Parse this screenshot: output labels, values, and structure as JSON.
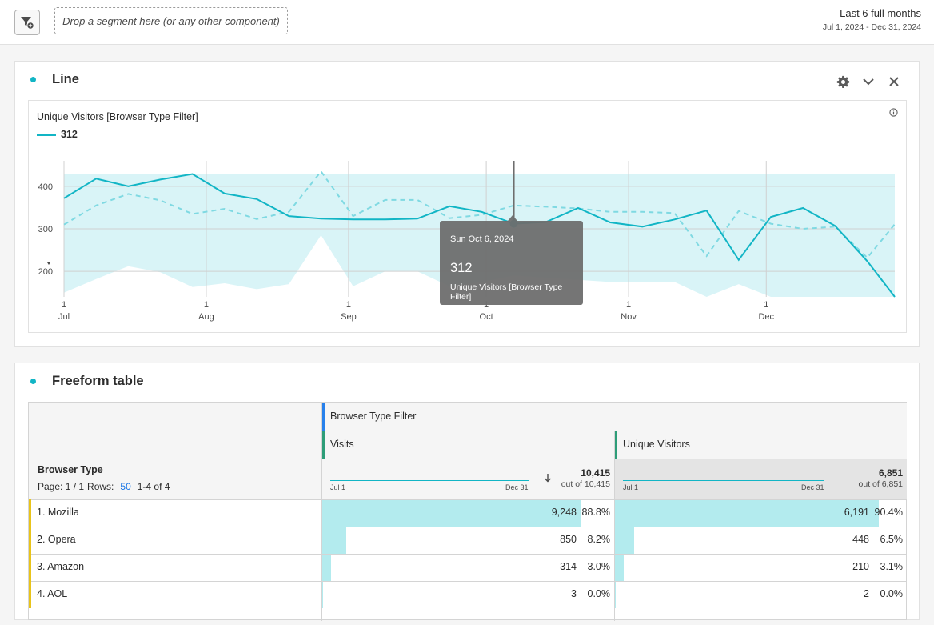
{
  "topbar": {
    "dropzone_text": "Drop a segment here (or any other component)",
    "date_title": "Last 6 full months",
    "date_range": "Jul 1, 2024 - Dec 31, 2024"
  },
  "line_panel": {
    "title": "Line",
    "chart_title": "Unique Visitors [Browser Type Filter]",
    "legend_value": "312",
    "tooltip": {
      "date": "Sun Oct 6, 2024",
      "value": "312",
      "label": "Unique Visitors [Browser Type Filter]"
    }
  },
  "chart_data": {
    "type": "line",
    "title": "Unique Visitors [Browser Type Filter]",
    "y_ticks": [
      "400",
      "300",
      "200"
    ],
    "ylim": [
      140,
      460
    ],
    "x_ticks": [
      {
        "day": "1",
        "month": "Jul",
        "t": 0
      },
      {
        "day": "1",
        "month": "Aug",
        "t": 31
      },
      {
        "day": "1",
        "month": "Sep",
        "t": 62
      },
      {
        "day": "1",
        "month": "Oct",
        "t": 92
      },
      {
        "day": "1",
        "month": "Nov",
        "t": 123
      },
      {
        "day": "1",
        "month": "Dec",
        "t": 153
      }
    ],
    "x_range": [
      0,
      181
    ],
    "series": [
      {
        "name": "312",
        "t": [
          0,
          7,
          14,
          21,
          28,
          35,
          42,
          49,
          56,
          63,
          70,
          77,
          84,
          91,
          98,
          105,
          112,
          119,
          126,
          133,
          140,
          147,
          154,
          161,
          168,
          175,
          181
        ],
        "values": [
          372,
          418,
          400,
          416,
          429,
          383,
          370,
          330,
          324,
          322,
          322,
          324,
          353,
          340,
          312,
          316,
          349,
          315,
          305,
          322,
          343,
          227,
          328,
          349,
          307,
          224,
          113
        ]
      },
      {
        "t": [
          0,
          7,
          14,
          21,
          28,
          35,
          42,
          49,
          56,
          63,
          70,
          77,
          84,
          91,
          98,
          105,
          112,
          119,
          126,
          133,
          140,
          147,
          154,
          161,
          168,
          175,
          181
        ],
        "values": [
          310,
          355,
          382,
          367,
          335,
          347,
          323,
          340,
          435,
          330,
          368,
          368,
          325,
          333,
          355,
          352,
          348,
          340,
          340,
          337,
          236,
          342,
          312,
          300,
          305,
          232,
          311
        ]
      }
    ],
    "band": {
      "t": [
        0,
        7,
        14,
        21,
        28,
        35,
        42,
        49,
        56,
        63,
        70,
        77,
        84,
        91,
        98,
        105,
        112,
        119,
        126,
        133,
        140,
        147,
        154,
        161,
        168,
        175,
        181
      ],
      "upper": [
        428,
        428,
        428,
        428,
        428,
        428,
        428,
        428,
        428,
        428,
        428,
        428,
        428,
        428,
        428,
        428,
        428,
        428,
        428,
        428,
        428,
        428,
        428,
        428,
        428,
        428,
        428
      ],
      "lower": [
        150,
        182,
        212,
        198,
        163,
        172,
        158,
        170,
        285,
        165,
        200,
        200,
        165,
        175,
        190,
        185,
        180,
        175,
        175,
        175,
        105,
        170,
        140,
        130,
        140,
        105,
        105
      ]
    },
    "highlight": {
      "t": 98,
      "value": 312
    }
  },
  "table_panel": {
    "title": "Freeform table",
    "segment_header": "Browser Type Filter",
    "dimension": "Browser Type",
    "page_label": "Page: 1 / 1",
    "rows_label": "Rows:",
    "rows_value": "50",
    "range_label": "1-4 of 4",
    "columns": [
      {
        "name": "Visits",
        "spark_start": "Jul 1",
        "spark_end": "Dec 31",
        "total": "10,415",
        "total_sub": "out of 10,415"
      },
      {
        "name": "Unique Visitors",
        "spark_start": "Jul 1",
        "spark_end": "Dec 31",
        "total": "6,851",
        "total_sub": "out of 6,851"
      }
    ],
    "rows": [
      {
        "name": "1.  Mozilla",
        "visits": "9,248",
        "visits_pct": "88.8%",
        "visits_frac": 0.888,
        "uv": "6,191",
        "uv_pct": "90.4%",
        "uv_frac": 0.904
      },
      {
        "name": "2.  Opera",
        "visits": "850",
        "visits_pct": "8.2%",
        "visits_frac": 0.082,
        "uv": "448",
        "uv_pct": "6.5%",
        "uv_frac": 0.065
      },
      {
        "name": "3.  Amazon",
        "visits": "314",
        "visits_pct": "3.0%",
        "visits_frac": 0.03,
        "uv": "210",
        "uv_pct": "3.1%",
        "uv_frac": 0.031
      },
      {
        "name": "4.  AOL",
        "visits": "3",
        "visits_pct": "0.0%",
        "visits_frac": 0.0,
        "uv": "2",
        "uv_pct": "0.0%",
        "uv_frac": 0.0
      }
    ]
  },
  "colors": {
    "accent": "#12b5c5",
    "band": "#d9f4f7",
    "bar": "#b3ebee",
    "row_marker": "#e8c31a"
  }
}
